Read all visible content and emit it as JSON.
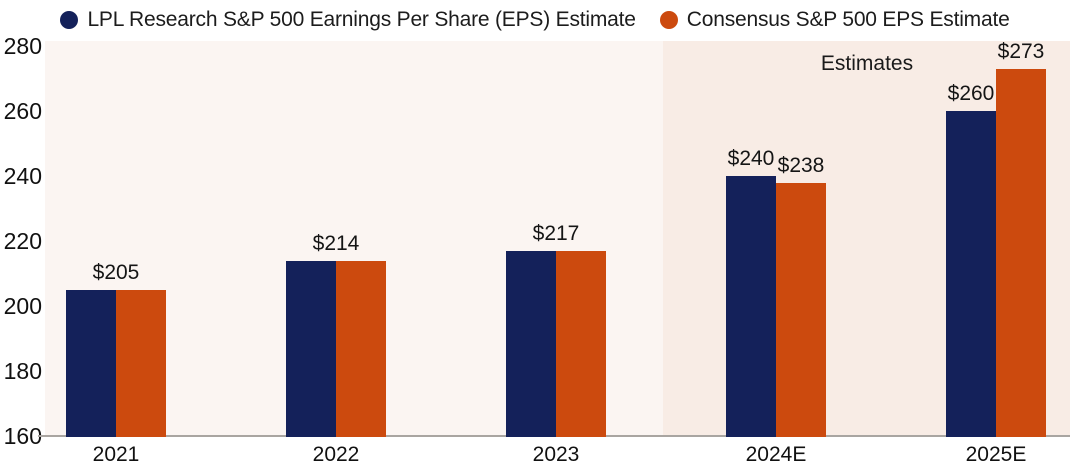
{
  "chart_data": {
    "type": "bar",
    "title": "",
    "xlabel": "",
    "ylabel": "",
    "categories": [
      "2021",
      "2022",
      "2023",
      "2024E",
      "2025E"
    ],
    "series": [
      {
        "name": "LPL Research S&P 500 Earnings Per Share (EPS) Estimate",
        "color": "#14215a",
        "values": [
          205,
          214,
          217,
          240,
          260
        ],
        "bar_labels": [
          null,
          null,
          null,
          "$240",
          "$260"
        ]
      },
      {
        "name": "Consensus S&P 500 EPS Estimate",
        "color": "#cc4a0e",
        "values": [
          205,
          214,
          217,
          238,
          273
        ],
        "bar_labels": [
          null,
          null,
          null,
          "$238",
          "$273"
        ]
      }
    ],
    "pair_labels": [
      "$205",
      "$214",
      "$217",
      null,
      null
    ],
    "annotation": "Estimates",
    "ylim": [
      160,
      280
    ],
    "yticks": [
      280,
      260,
      240,
      220,
      200,
      180,
      160
    ],
    "legend_position": "top",
    "grid": false,
    "estimates_region": {
      "start_category": "2024E"
    },
    "colors": {
      "plot_bg_actuals": "#fbf5f2",
      "plot_bg_estimates": "#f8ece5",
      "axis_line": "#a9a5a1",
      "text": "#1a1a1a"
    }
  }
}
